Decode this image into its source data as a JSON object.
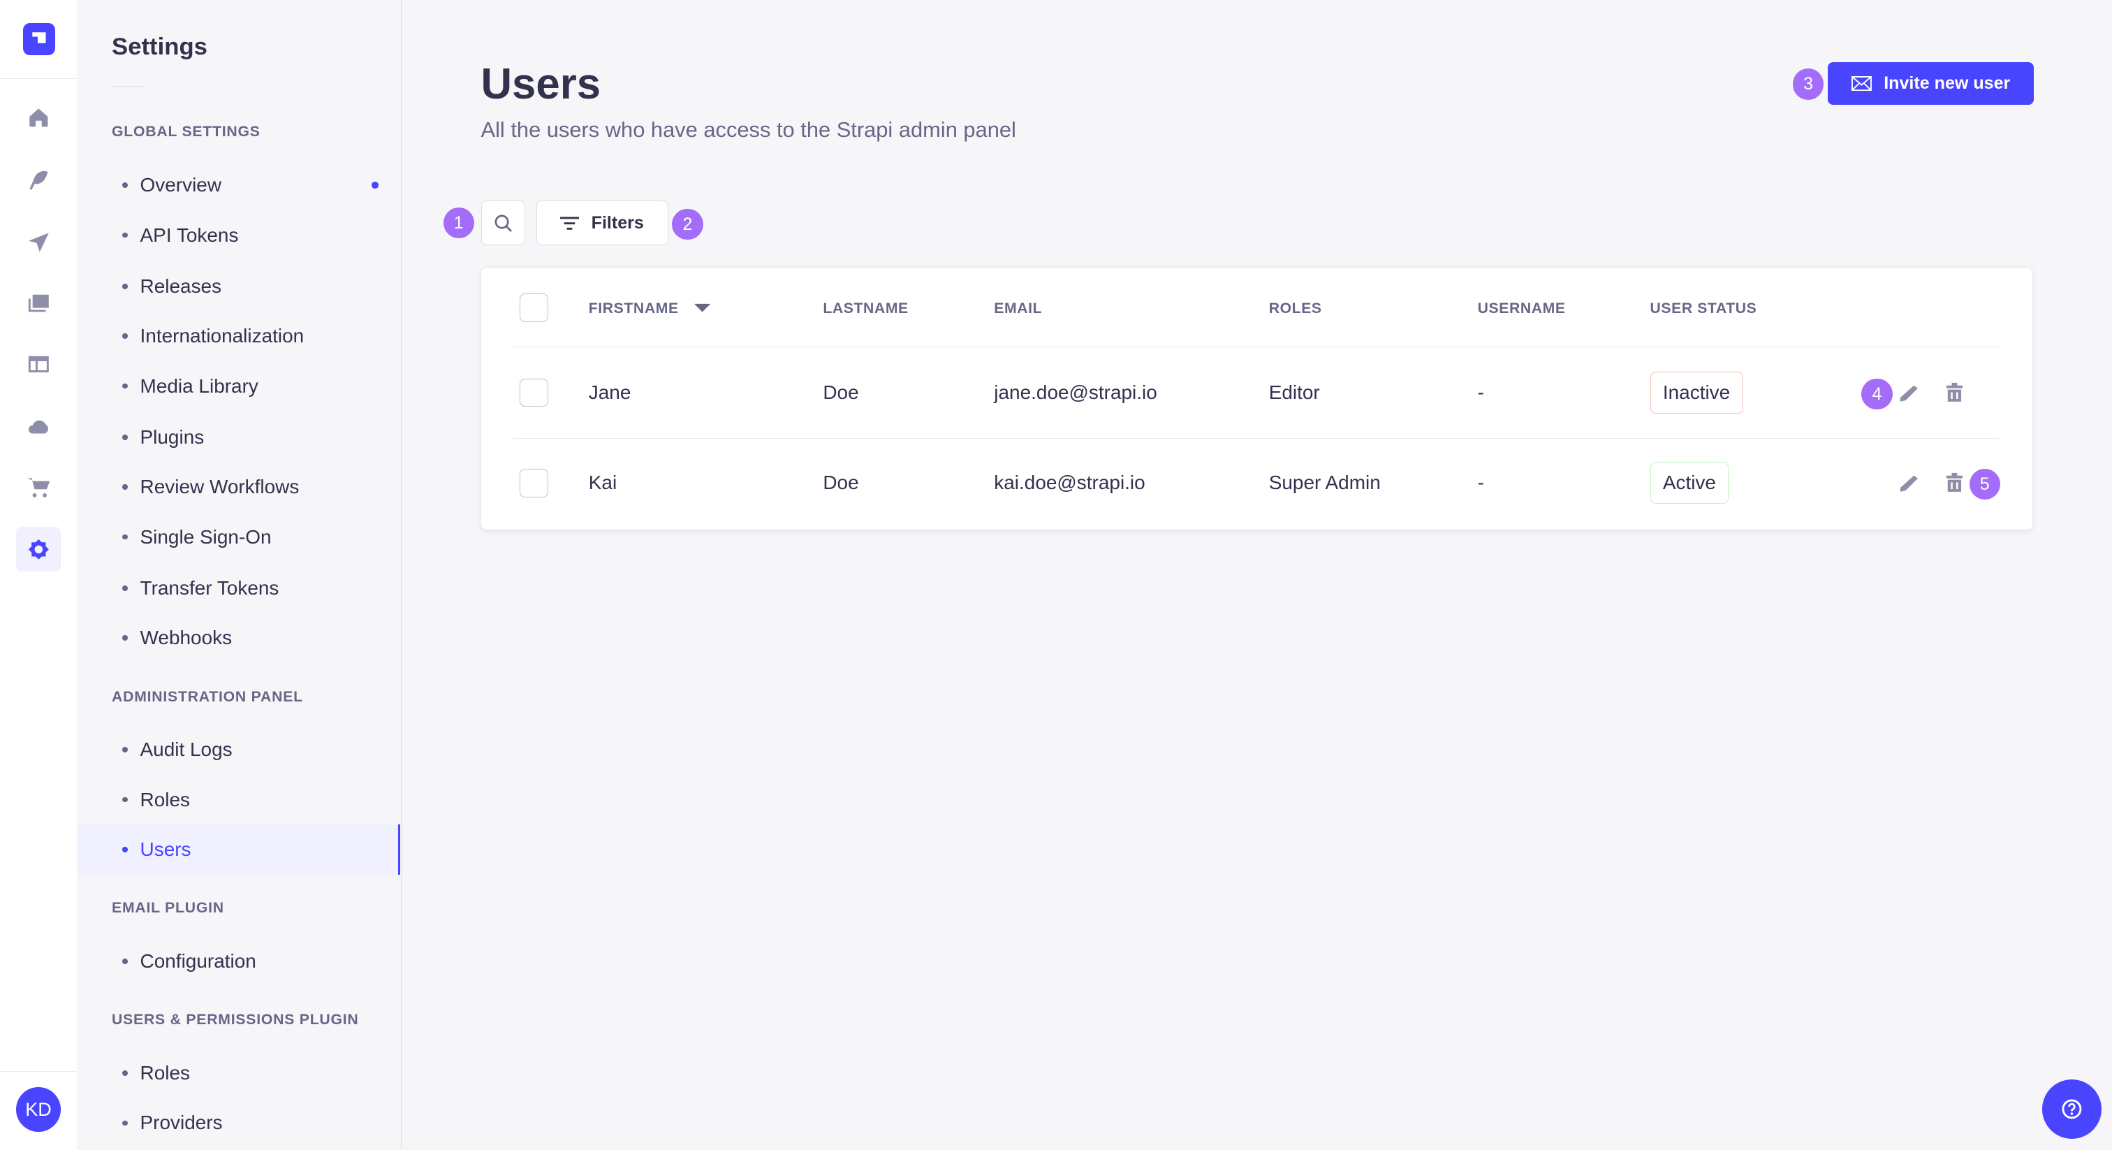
{
  "rail": {
    "items": [
      "home",
      "content-manager",
      "deploy",
      "media-library",
      "content-type-builder",
      "cloud",
      "marketplace",
      "settings"
    ],
    "avatar_initials": "KD"
  },
  "sidebar": {
    "title": "Settings",
    "sections": [
      {
        "label": "GLOBAL SETTINGS",
        "items": [
          "Overview",
          "API Tokens",
          "Releases",
          "Internationalization",
          "Media Library",
          "Plugins",
          "Review Workflows",
          "Single Sign-On",
          "Transfer Tokens",
          "Webhooks"
        ]
      },
      {
        "label": "ADMINISTRATION PANEL",
        "items": [
          "Audit Logs",
          "Roles",
          "Users"
        ]
      },
      {
        "label": "EMAIL PLUGIN",
        "items": [
          "Configuration"
        ]
      },
      {
        "label": "USERS & PERMISSIONS PLUGIN",
        "items": [
          "Roles",
          "Providers"
        ]
      }
    ],
    "active_item": "Users"
  },
  "header": {
    "title": "Users",
    "subtitle": "All the users who have access to the Strapi admin panel",
    "invite_label": "Invite new user"
  },
  "toolbar": {
    "filters_label": "Filters"
  },
  "badges": [
    "1",
    "2",
    "3",
    "4",
    "5"
  ],
  "table": {
    "columns": [
      "FIRSTNAME",
      "LASTNAME",
      "EMAIL",
      "ROLES",
      "USERNAME",
      "USER STATUS"
    ],
    "rows": [
      {
        "firstname": "Jane",
        "lastname": "Doe",
        "email": "jane.doe@strapi.io",
        "roles": "Editor",
        "username": "-",
        "status": "Inactive"
      },
      {
        "firstname": "Kai",
        "lastname": "Doe",
        "email": "kai.doe@strapi.io",
        "roles": "Super Admin",
        "username": "-",
        "status": "Active"
      }
    ]
  },
  "colors": {
    "primary": "#4945ff",
    "badge": "#a36cf9"
  }
}
